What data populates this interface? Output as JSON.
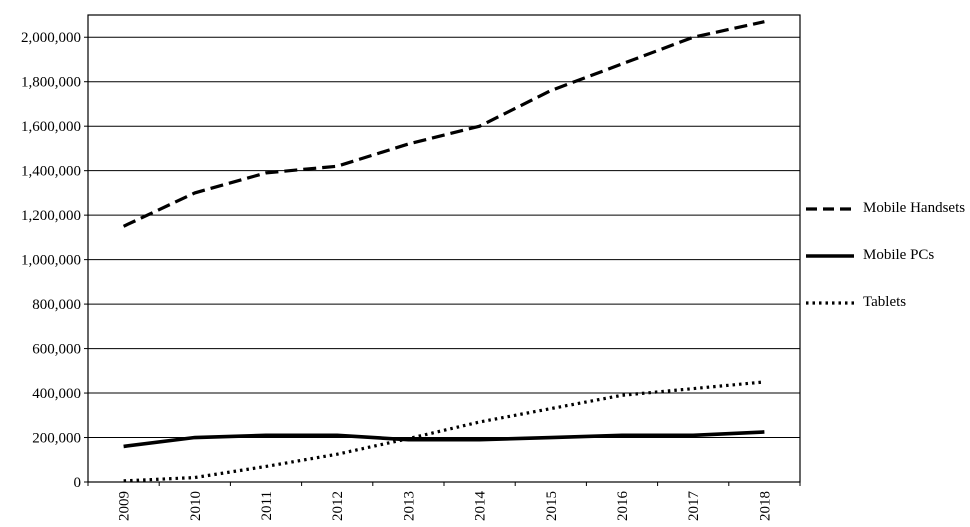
{
  "chart_data": {
    "type": "line",
    "title": "",
    "xlabel": "",
    "ylabel": "",
    "categories": [
      "2009",
      "2010",
      "2011",
      "2012",
      "2013",
      "2014",
      "2015",
      "2016",
      "2017",
      "2018"
    ],
    "series": [
      {
        "name": "Mobile Handsets",
        "line_style": "dashed",
        "values": [
          1150000,
          1300000,
          1390000,
          1420000,
          1520000,
          1600000,
          1760000,
          1880000,
          2000000,
          2070000
        ]
      },
      {
        "name": "Mobile PCs",
        "line_style": "solid",
        "values": [
          160000,
          200000,
          210000,
          210000,
          190000,
          190000,
          200000,
          210000,
          210000,
          225000
        ]
      },
      {
        "name": "Tablets",
        "line_style": "dotted",
        "values": [
          5000,
          20000,
          70000,
          125000,
          195000,
          270000,
          330000,
          390000,
          420000,
          450000
        ]
      }
    ],
    "ylim": [
      0,
      2100000
    ],
    "y_ticks": [
      0,
      200000,
      400000,
      600000,
      800000,
      1000000,
      1200000,
      1400000,
      1600000,
      1800000,
      2000000
    ],
    "y_tick_labels": [
      "0",
      "200,000",
      "400,000",
      "600,000",
      "800,000",
      "1,000,000",
      "1,200,000",
      "1,400,000",
      "1,600,000",
      "1,800,000",
      "2,000,000"
    ],
    "grid": "horizontal",
    "legend_position": "right",
    "colors": {
      "line": "#000000",
      "grid": "#000000",
      "background": "#ffffff"
    }
  }
}
